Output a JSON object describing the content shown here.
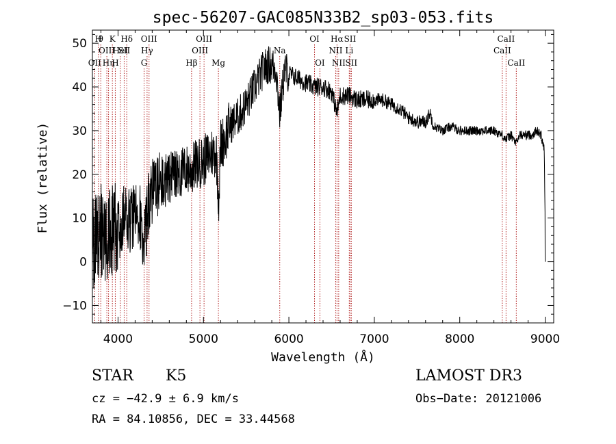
{
  "chart_data": {
    "type": "line",
    "title": "spec-56207-GAC085N33B2_sp03-053.fits",
    "xlabel": "Wavelength (Å)",
    "ylabel": "Flux (relative)",
    "xlim": [
      3700,
      9100
    ],
    "ylim": [
      -14,
      53
    ],
    "xticks": [
      4000,
      5000,
      6000,
      7000,
      8000,
      9000
    ],
    "yticks": [
      -10,
      0,
      10,
      20,
      30,
      40,
      50
    ],
    "grid": false,
    "spectrum_anchors": {
      "x": [
        3700,
        3750,
        3800,
        3850,
        3900,
        3950,
        4000,
        4050,
        4100,
        4150,
        4200,
        4250,
        4300,
        4330,
        4360,
        4400,
        4450,
        4500,
        4600,
        4700,
        4800,
        4860,
        4900,
        5000,
        5100,
        5150,
        5180,
        5200,
        5250,
        5300,
        5400,
        5500,
        5600,
        5700,
        5750,
        5800,
        5850,
        5893,
        5950,
        6000,
        6100,
        6200,
        6300,
        6400,
        6500,
        6563,
        6600,
        6700,
        6800,
        6900,
        7000,
        7100,
        7200,
        7300,
        7400,
        7500,
        7600,
        7650,
        7700,
        7800,
        7900,
        8000,
        8100,
        8200,
        8300,
        8400,
        8498,
        8542,
        8600,
        8662,
        8700,
        8800,
        8850,
        8900,
        8950,
        8990,
        9000
      ],
      "y": [
        4,
        5,
        7,
        5,
        6,
        7,
        8,
        9,
        10,
        10,
        11,
        12,
        5,
        8,
        14,
        16,
        17,
        18,
        19,
        20,
        21,
        21,
        22,
        23,
        25,
        25,
        14,
        27,
        28,
        31,
        33,
        36,
        40,
        44,
        45,
        45,
        44,
        34,
        44,
        43,
        42,
        41,
        40,
        40,
        39,
        34,
        38,
        38,
        37,
        37,
        37,
        37,
        36,
        35,
        33,
        32,
        32,
        34,
        31,
        30,
        31,
        30,
        30,
        30,
        30,
        30,
        29,
        28,
        29,
        27,
        29,
        29,
        29,
        30,
        29,
        26,
        8
      ]
    },
    "line_markers": [
      {
        "wavelength": 3727,
        "label": "OII",
        "row": 2
      },
      {
        "wavelength": 3771,
        "label": "H",
        "row": 0
      },
      {
        "wavelength": 3798,
        "label": "θ",
        "row": 0
      },
      {
        "wavelength": 3869,
        "label": "OIII",
        "row": 1
      },
      {
        "wavelength": 3889,
        "label": "Hη",
        "row": 2
      },
      {
        "wavelength": 3934,
        "label": "K",
        "row": 0
      },
      {
        "wavelength": 3968,
        "label": "H",
        "row": 2
      },
      {
        "wavelength": 4026,
        "label": "HeI",
        "row": 1
      },
      {
        "wavelength": 4072,
        "label": "SII",
        "row": 1
      },
      {
        "wavelength": 4102,
        "label": "Hδ",
        "row": 0
      },
      {
        "wavelength": 4305,
        "label": "G",
        "row": 2
      },
      {
        "wavelength": 4340,
        "label": "Hγ",
        "row": 1
      },
      {
        "wavelength": 4363,
        "label": "OIII",
        "row": 0
      },
      {
        "wavelength": 4861,
        "label": "Hβ",
        "row": 2
      },
      {
        "wavelength": 4959,
        "label": "OIII",
        "row": 1
      },
      {
        "wavelength": 5007,
        "label": "OIII",
        "row": 0
      },
      {
        "wavelength": 5175,
        "label": "Mg",
        "row": 2
      },
      {
        "wavelength": 5893,
        "label": "Na",
        "row": 1
      },
      {
        "wavelength": 6300,
        "label": "OI",
        "row": 0
      },
      {
        "wavelength": 6363,
        "label": "OI",
        "row": 2
      },
      {
        "wavelength": 6548,
        "label": "NII",
        "row": 1
      },
      {
        "wavelength": 6563,
        "label": "Hα",
        "row": 0
      },
      {
        "wavelength": 6583,
        "label": "NII",
        "row": 2
      },
      {
        "wavelength": 6707,
        "label": "Li",
        "row": 1
      },
      {
        "wavelength": 6716,
        "label": "SII",
        "row": 0
      },
      {
        "wavelength": 6731,
        "label": "SII",
        "row": 2
      },
      {
        "wavelength": 8498,
        "label": "CaII",
        "row": 1
      },
      {
        "wavelength": 8542,
        "label": "CaII",
        "row": 0
      },
      {
        "wavelength": 8662,
        "label": "CaII",
        "row": 2
      }
    ]
  },
  "info": {
    "class": "STAR",
    "subclass": "K5",
    "survey": "LAMOST DR3",
    "cz": "cz = −42.9 ± 6.9 km/s",
    "obs_date": "Obs−Date: 20121006",
    "radec": "RA =  84.10856, DEC =  33.44568"
  },
  "colors": {
    "spectrum": "#000000",
    "markers": "#b22222",
    "axes": "#000000",
    "background": "#ffffff"
  }
}
